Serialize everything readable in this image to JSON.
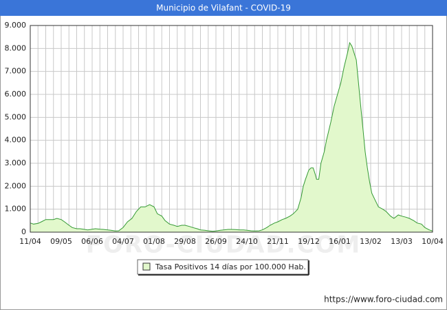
{
  "chart_data": {
    "type": "area",
    "title": "Municipio de Vilafant - COVID-19",
    "x": [
      0,
      3,
      7,
      10,
      14,
      17,
      21,
      24,
      28,
      31,
      35,
      38,
      42,
      45,
      49,
      52,
      56,
      59,
      63,
      66,
      70,
      73,
      77,
      80,
      84,
      88,
      92,
      96,
      100,
      104,
      108,
      112,
      115,
      119,
      122,
      126,
      130,
      133,
      137,
      140,
      144,
      147,
      151,
      154,
      158,
      161,
      165,
      168,
      172,
      175,
      179,
      182,
      186,
      189,
      193,
      196,
      200,
      203,
      207,
      210,
      214,
      217,
      221,
      224,
      228,
      231,
      235,
      238,
      242,
      245,
      247,
      249,
      252,
      254,
      256,
      258,
      259,
      261,
      263,
      266,
      268,
      272,
      275,
      278,
      281,
      284,
      287,
      289,
      291,
      293,
      295,
      297,
      299,
      301,
      303,
      305,
      307,
      309,
      312,
      315,
      319,
      322,
      326,
      329,
      333,
      336,
      340,
      343,
      347,
      350,
      354,
      357,
      361,
      364
    ],
    "series": [
      {
        "name": "Tasa Positivos 14 días por 100.000 Hab.",
        "color": "#339933",
        "fill": "#e2f8cc",
        "values": [
          400,
          350,
          380,
          450,
          550,
          550,
          550,
          600,
          550,
          450,
          300,
          200,
          150,
          150,
          120,
          100,
          130,
          150,
          130,
          120,
          100,
          80,
          50,
          60,
          200,
          450,
          600,
          900,
          1100,
          1100,
          1200,
          1100,
          800,
          700,
          500,
          350,
          300,
          250,
          300,
          300,
          250,
          200,
          150,
          100,
          80,
          60,
          40,
          50,
          80,
          100,
          120,
          120,
          110,
          100,
          100,
          80,
          60,
          50,
          60,
          100,
          200,
          300,
          400,
          450,
          550,
          600,
          700,
          800,
          1000,
          1500,
          2000,
          2300,
          2700,
          2800,
          2800,
          2500,
          2300,
          2300,
          3000,
          3500,
          4000,
          4800,
          5500,
          6000,
          6500,
          7200,
          7800,
          8250,
          8100,
          7800,
          7500,
          6500,
          5500,
          4500,
          3500,
          2800,
          2200,
          1700,
          1400,
          1100,
          1000,
          900,
          700,
          600,
          750,
          700,
          650,
          600,
          500,
          400,
          350,
          200,
          100,
          50
        ]
      }
    ],
    "xlim": [
      0,
      364
    ],
    "xticks": [
      {
        "value": 0,
        "label": "11/04"
      },
      {
        "value": 28,
        "label": "09/05"
      },
      {
        "value": 56,
        "label": "06/06"
      },
      {
        "value": 84,
        "label": "04/07"
      },
      {
        "value": 112,
        "label": "01/08"
      },
      {
        "value": 140,
        "label": "29/08"
      },
      {
        "value": 168,
        "label": "26/09"
      },
      {
        "value": 196,
        "label": "24/10"
      },
      {
        "value": 224,
        "label": "21/11"
      },
      {
        "value": 252,
        "label": "19/12"
      },
      {
        "value": 280,
        "label": "16/01"
      },
      {
        "value": 308,
        "label": "13/02"
      },
      {
        "value": 336,
        "label": "13/03"
      },
      {
        "value": 364,
        "label": "10/04"
      }
    ],
    "ylim": [
      0,
      9000
    ],
    "yticks": [
      0,
      {
        "value": 1000,
        "label": "1.000"
      },
      {
        "value": 2000,
        "label": "2.000"
      },
      {
        "value": 3000,
        "label": "3.000"
      },
      {
        "value": 4000,
        "label": "4.000"
      },
      {
        "value": 5000,
        "label": "5.000"
      },
      {
        "value": 6000,
        "label": "6.000"
      },
      {
        "value": 7000,
        "label": "7.000"
      },
      {
        "value": 8000,
        "label": "8.000"
      },
      {
        "value": 9000,
        "label": "9.000"
      }
    ],
    "grid": true,
    "watermark": "FORO-CIUDAD.COM",
    "source": "https://www.foro-ciudad.com"
  }
}
